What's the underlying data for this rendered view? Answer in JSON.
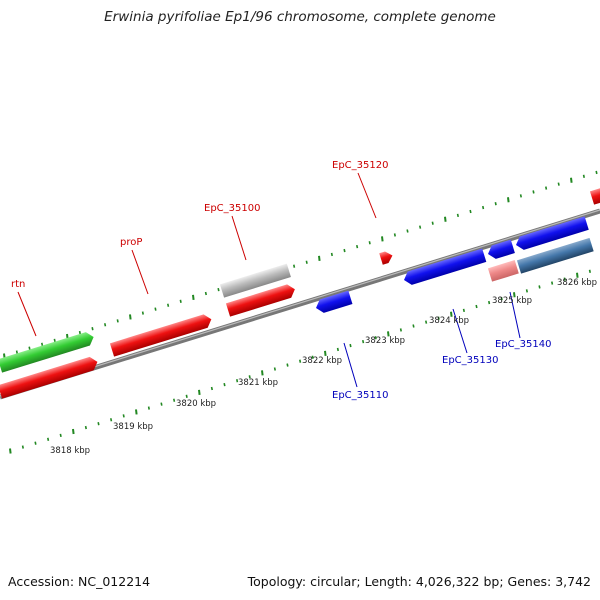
{
  "header": {
    "title": "Erwinia pyrifoliae Ep1/96 chromosome, complete genome"
  },
  "footer": {
    "accession": "Accession: NC_012214",
    "summary": "Topology: circular; Length: 4,026,322 bp; Genes: 3,742"
  },
  "colors": {
    "forward": "#ee1111",
    "reverse": "#1111ee",
    "green_gene": "#33cc33",
    "grey_gene": "#bbbbbb",
    "pink_gene": "#ee8888",
    "steel_gene": "#4477aa",
    "tick": "#228822"
  },
  "scale": {
    "tick_labels": [
      "3818 kbp",
      "3819 kbp",
      "3820 kbp",
      "3821 kbp",
      "3822 kbp",
      "3823 kbp",
      "3824 kbp",
      "3825 kbp",
      "3826 kbp"
    ]
  },
  "genes": {
    "forward_labels": [
      "rtn",
      "proP",
      "EpC_35100",
      "EpC_35120"
    ],
    "reverse_labels": [
      "EpC_35110",
      "EpC_35130",
      "EpC_35140"
    ]
  }
}
